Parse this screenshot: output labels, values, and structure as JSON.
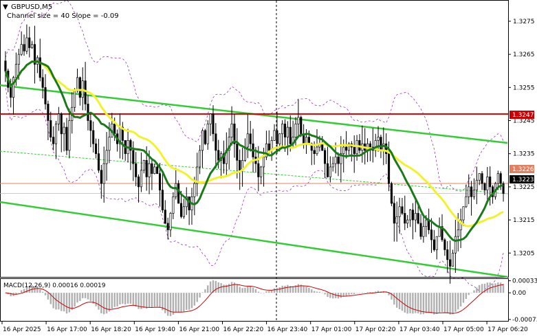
{
  "symbol_title": "GBPUSD,M5",
  "channel_caption": "Channel size = 40 Slope = -0.09",
  "chart_data": {
    "type": "candlestick",
    "symbol": "GBPUSD",
    "timeframe": "M5",
    "price_axis": {
      "min": 1.3198,
      "max": 1.3281,
      "ticks": [
        "1.3275",
        "1.3265",
        "1.3255",
        "1.3245",
        "1.3235",
        "1.3225",
        "1.3215",
        "1.3205"
      ]
    },
    "time_axis": [
      "16 Apr 2025",
      "16 Apr 17:00",
      "16 Apr 18:20",
      "16 Apr 19:40",
      "16 Apr 21:00",
      "16 Apr 22:20",
      "16 Apr 23:40",
      "17 Apr 01:00",
      "17 Apr 02:20",
      "17 Apr 03:40",
      "17 Apr 05:00",
      "17 Apr 06:20"
    ],
    "closes": [
      1.326,
      1.3255,
      1.3252,
      1.3258,
      1.3262,
      1.3265,
      1.3268,
      1.3266,
      1.327,
      1.3267,
      1.3268,
      1.3262,
      1.3264,
      1.3258,
      1.3255,
      1.325,
      1.3245,
      1.324,
      1.3238,
      1.3244,
      1.3247,
      1.3241,
      1.3243,
      1.3236,
      1.3245,
      1.3249,
      1.3254,
      1.3258,
      1.3252,
      1.3257,
      1.325,
      1.3245,
      1.3242,
      1.3238,
      1.3235,
      1.323,
      1.3226,
      1.3232,
      1.3236,
      1.324,
      1.3244,
      1.3241,
      1.3238,
      1.3243,
      1.3239,
      1.3235,
      1.3239,
      1.3236,
      1.3232,
      1.3228,
      1.3225,
      1.323,
      1.3233,
      1.3228,
      1.3232,
      1.3229,
      1.3231,
      1.3229,
      1.3224,
      1.3218,
      1.3214,
      1.3212,
      1.3217,
      1.3222,
      1.3226,
      1.322,
      1.3216,
      1.3219,
      1.3222,
      1.3218,
      1.3222,
      1.3226,
      1.3231,
      1.3236,
      1.3242,
      1.3238,
      1.3244,
      1.3247,
      1.3241,
      1.3236,
      1.3233,
      1.3235,
      1.3232,
      1.3236,
      1.324,
      1.3244,
      1.3238,
      1.3233,
      1.323,
      1.3233,
      1.3237,
      1.3241,
      1.3238,
      1.3234,
      1.3232,
      1.3228,
      1.3231,
      1.3234,
      1.3238,
      1.3236,
      1.3239,
      1.3242,
      1.3238,
      1.3241,
      1.3244,
      1.324,
      1.3243,
      1.3238,
      1.324,
      1.3244,
      1.3246,
      1.3241,
      1.3238,
      1.324,
      1.3238,
      1.3236,
      1.3235,
      1.3237,
      1.3238,
      1.3236,
      1.3232,
      1.3228,
      1.3231,
      1.3232,
      1.3234,
      1.3232,
      1.3235,
      1.3237,
      1.3236,
      1.3238,
      1.3237,
      1.3235,
      1.3239,
      1.3236,
      1.3238,
      1.3236,
      1.3238,
      1.3237,
      1.3236,
      1.3239,
      1.324,
      1.3236,
      1.3238,
      1.3235,
      1.3226,
      1.322,
      1.3214,
      1.3216,
      1.3219,
      1.3217,
      1.3214,
      1.3215,
      1.3218,
      1.3215,
      1.3217,
      1.3214,
      1.321,
      1.3213,
      1.3215,
      1.3212,
      1.3209,
      1.3206,
      1.321,
      1.3213,
      1.3209,
      1.3206,
      1.3203,
      1.3201,
      1.3205,
      1.321,
      1.3212,
      1.3215,
      1.3219,
      1.3222,
      1.3225,
      1.3222,
      1.3224,
      1.3227,
      1.3229,
      1.3226,
      1.3224,
      1.3228,
      1.3225,
      1.3222,
      1.3226,
      1.3229,
      1.3226,
      1.3223
    ],
    "resistance_level": 1.3247,
    "current_price": 1.3226,
    "bid_price": 1.3223,
    "macd": {
      "label": "MACD(12,26,9) 0.00016 0.00019",
      "ticks": [
        "0.00033",
        "0.00",
        "-0.00073"
      ],
      "min": -0.00075,
      "max": 0.00036
    },
    "grid": false
  },
  "price_labels": {
    "resistance": "1.3247",
    "current": "1.3226",
    "bid": "1.3223"
  },
  "colors": {
    "bull_candle": "#000000",
    "bear_candle": "#000000",
    "ma_fast": "#1a7a1a",
    "ma_slow": "#f2f22a",
    "channel": "#32cd32",
    "resistance": "#cc0000",
    "current_line": "#e08060",
    "bands": "#9a30c0",
    "macd_hist": "#b0b0b0",
    "macd_signal": "#cc0000"
  }
}
